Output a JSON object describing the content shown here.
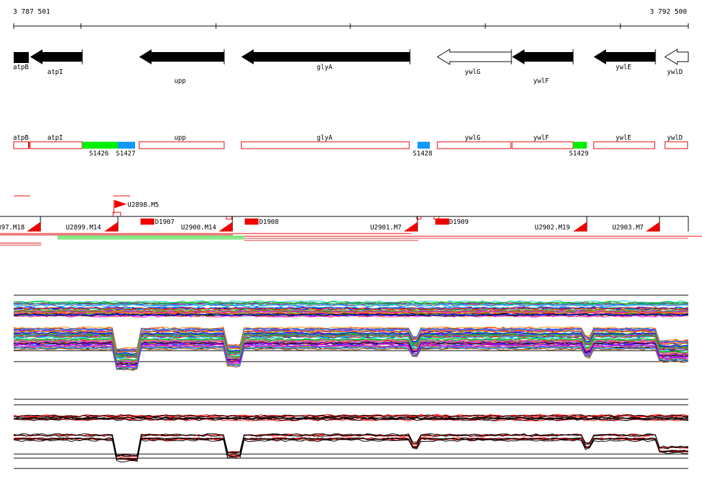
{
  "coordinates": {
    "start": "3 787 501",
    "end": "3 792 500"
  },
  "genes": [
    {
      "label": "atpB"
    },
    {
      "label": "atpI"
    },
    {
      "label": "upp"
    },
    {
      "label": "glyA"
    },
    {
      "label": "ywlG"
    },
    {
      "label": "ywlF"
    },
    {
      "label": "ywlE"
    },
    {
      "label": "ywlD"
    }
  ],
  "segments": [
    {
      "label": "S1426"
    },
    {
      "label": "S1427"
    },
    {
      "label": "S1428"
    },
    {
      "label": "S1429"
    }
  ],
  "transcripts": [
    {
      "label": "U2898.M5"
    },
    {
      "label": "897.M18"
    },
    {
      "label": "U2899.M14"
    },
    {
      "label": "U2900.M14"
    },
    {
      "label": "U2901.M7"
    },
    {
      "label": "U2902.M19"
    },
    {
      "label": "U2903.M7"
    }
  ],
  "downshifts": [
    {
      "label": "D1907"
    },
    {
      "label": "D1908"
    },
    {
      "label": "D1909"
    }
  ],
  "colors": {
    "gene_filled": "#000000",
    "gene_open": "#ffffff",
    "segment_outline": "#dd0000",
    "segment_green": "#00ee00",
    "segment_blue": "#1199ff",
    "transcript": "#ee0000",
    "profile_red": "#ee0000"
  }
}
